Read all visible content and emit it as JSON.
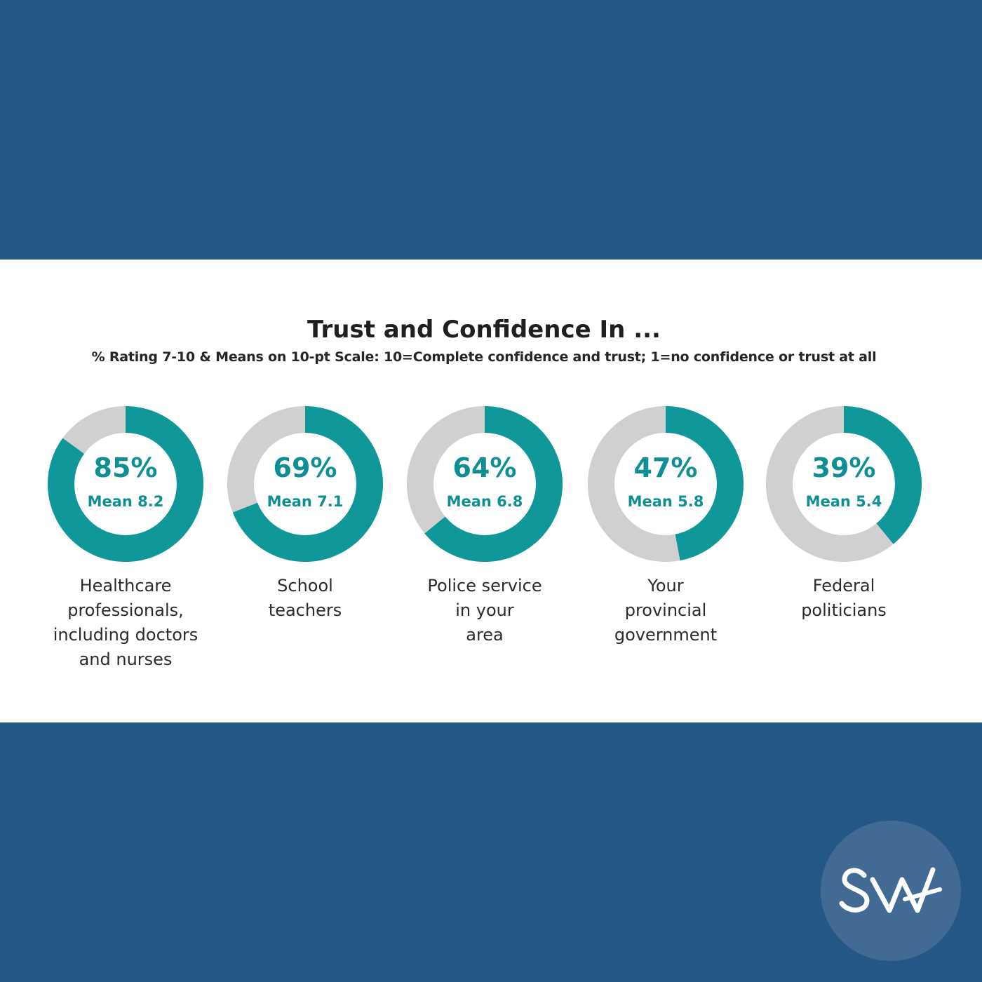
{
  "chart_data": {
    "type": "pie",
    "style": "donut",
    "title": "Trust and Confidence In ...",
    "subtitle": "% Rating 7-10 & Means on 10-pt Scale: 10=Complete confidence and trust; 1=no confidence or trust at all",
    "categories": [
      "Healthcare\nprofessionals,\nincluding doctors\nand nurses",
      "School\nteachers",
      "Police service\nin your\narea",
      "Your\nprovincial\ngovernment",
      "Federal\npoliticians"
    ],
    "values": [
      85,
      69,
      64,
      47,
      39
    ],
    "value_labels": [
      "85%",
      "69%",
      "64%",
      "47%",
      "39%"
    ],
    "means": [
      8.2,
      7.1,
      6.8,
      5.8,
      5.4
    ],
    "mean_labels": [
      "Mean 8.2",
      "Mean 7.1",
      "Mean 6.8",
      "Mean 5.8",
      "Mean 5.4"
    ],
    "colors": {
      "filled": "#0f979a",
      "remainder": "#d0d0d0"
    }
  },
  "colors": {
    "background": "#245886",
    "panel": "#ffffff",
    "logo_circle": "#416b95",
    "logo_mark": "#ffffff"
  },
  "logo": {
    "text": "SW"
  }
}
